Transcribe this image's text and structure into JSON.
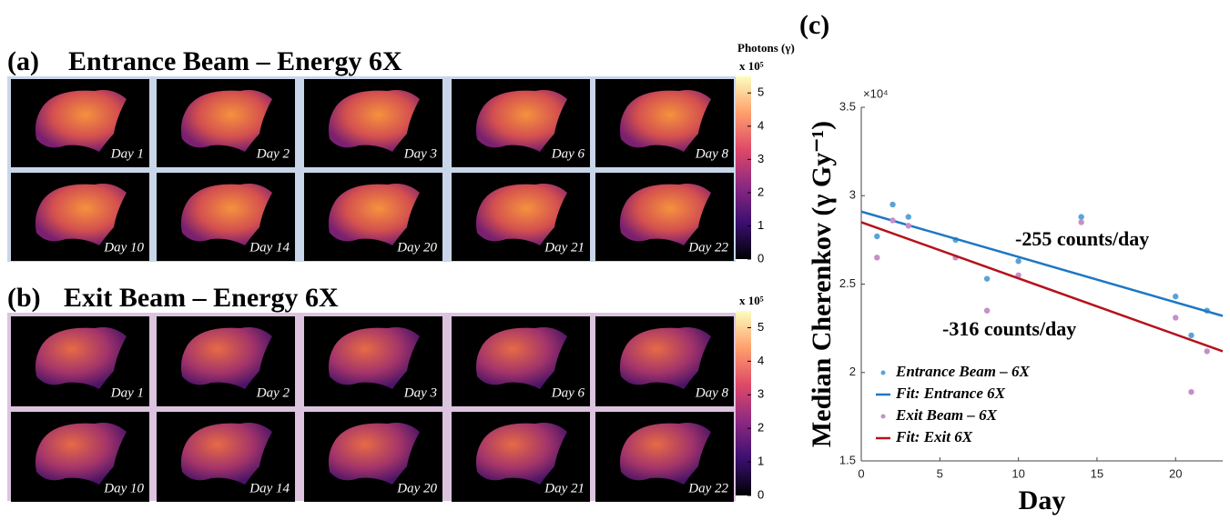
{
  "colorbar": {
    "title": "Photons (γ)",
    "lim": [
      0,
      5.5
    ],
    "ticks": [
      0,
      1,
      2,
      3,
      4,
      5
    ]
  },
  "panels": [
    {
      "label": "(a)",
      "title": "Entrance Beam – Energy 6X",
      "multiplier": "x 10⁵",
      "days": [
        "Day 1",
        "Day 2",
        "Day 3",
        "Day 6",
        "Day 8",
        "Day 10",
        "Day 14",
        "Day 20",
        "Day 21",
        "Day 22"
      ]
    },
    {
      "label": "(b)",
      "title": "Exit Beam – Energy 6X",
      "multiplier": "x 10⁵",
      "days": [
        "Day 1",
        "Day 2",
        "Day 3",
        "Day 6",
        "Day 8",
        "Day 10",
        "Day 14",
        "Day 20",
        "Day 21",
        "Day 22"
      ]
    }
  ],
  "chart_data": {
    "type": "scatter",
    "title": "(c)",
    "x_label": "Day",
    "y_label": "Median Cherenkov (γ Gy⁻¹)",
    "y_multiplier": "×10⁴",
    "xlim": [
      0,
      23
    ],
    "ylim": [
      1.5,
      3.5
    ],
    "xticks": [
      0,
      5,
      10,
      15,
      20
    ],
    "yticks": [
      1.5,
      2,
      2.5,
      3,
      3.5
    ],
    "legend": "lower left",
    "series": [
      {
        "name": "Entrance Beam – 6X",
        "style": "points",
        "color": "#5ba3d6",
        "x": [
          1,
          2,
          3,
          6,
          8,
          10,
          14,
          20,
          21,
          22
        ],
        "values": [
          2.77,
          2.95,
          2.88,
          2.75,
          2.53,
          2.63,
          2.88,
          2.43,
          2.21,
          2.35
        ]
      },
      {
        "name": "Fit: Entrance 6X",
        "style": "line",
        "color": "#1f77c4",
        "x": [
          0,
          23
        ],
        "values": [
          2.91,
          2.32
        ]
      },
      {
        "name": "Exit Beam – 6X",
        "style": "points",
        "color": "#c58fc9",
        "x": [
          1,
          2,
          3,
          6,
          8,
          10,
          14,
          20,
          21,
          22
        ],
        "values": [
          2.65,
          2.86,
          2.83,
          2.65,
          2.35,
          2.55,
          2.85,
          2.31,
          1.89,
          2.12
        ]
      },
      {
        "name": "Fit: Exit 6X",
        "style": "line",
        "color": "#b5121b",
        "x": [
          0,
          23
        ],
        "values": [
          2.85,
          2.12
        ]
      }
    ],
    "annotations": [
      "-255 counts/day",
      "-316 counts/day"
    ]
  }
}
